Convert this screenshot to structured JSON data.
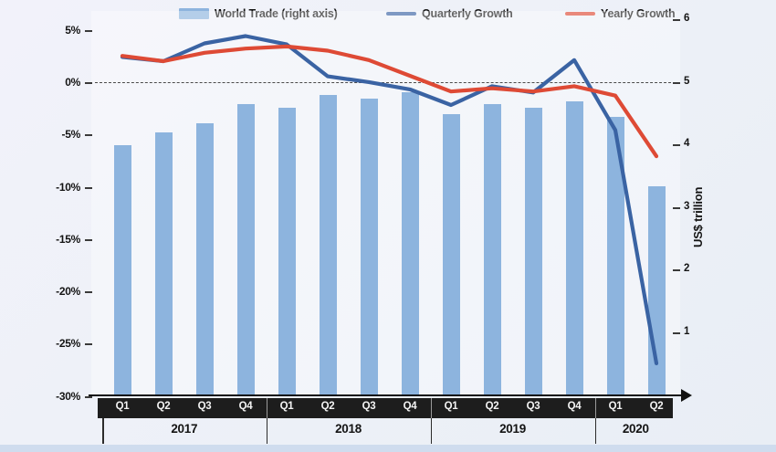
{
  "legend": {
    "items": [
      {
        "label": "World Trade (right axis)",
        "swatch": "bar",
        "color": "#8db4de"
      },
      {
        "label": "Quarterly Growth",
        "swatch": "line",
        "color": "#3a63a3"
      },
      {
        "label": "Yearly Growth",
        "swatch": "line",
        "color": "#de4a35"
      }
    ]
  },
  "chart_data": {
    "type": "bar+line",
    "title": "",
    "categories": [
      "Q1",
      "Q2",
      "Q3",
      "Q4",
      "Q1",
      "Q2",
      "Q3",
      "Q4",
      "Q1",
      "Q2",
      "Q3",
      "Q4",
      "Q1",
      "Q2"
    ],
    "year_groups": [
      {
        "label": "2017",
        "span": 4
      },
      {
        "label": "2018",
        "span": 4
      },
      {
        "label": "2019",
        "span": 4
      },
      {
        "label": "2020",
        "span": 2
      }
    ],
    "series": [
      {
        "name": "World Trade (right axis)",
        "type": "bar",
        "axis": "right",
        "color": "#8db4de",
        "unit": "US$ trillion",
        "values": [
          4.0,
          4.2,
          4.35,
          4.65,
          4.6,
          4.8,
          4.75,
          4.85,
          4.5,
          4.65,
          4.6,
          4.7,
          4.45,
          3.35
        ]
      },
      {
        "name": "Quarterly Growth",
        "type": "line",
        "axis": "left",
        "color": "#3a63a3",
        "unit": "%",
        "values": [
          2.5,
          2.1,
          3.8,
          4.5,
          3.7,
          0.65,
          0.1,
          -0.6,
          -2.1,
          -0.3,
          -0.9,
          2.2,
          -4.5,
          -26.8
        ]
      },
      {
        "name": "Yearly Growth",
        "type": "line",
        "axis": "left",
        "color": "#de4a35",
        "unit": "%",
        "values": [
          2.6,
          2.1,
          2.9,
          3.3,
          3.5,
          3.1,
          2.2,
          0.7,
          -0.8,
          -0.5,
          -0.8,
          -0.3,
          -1.2,
          -7.0
        ]
      }
    ],
    "left_axis": {
      "ticks": [
        "5%",
        "0%",
        "-5%",
        "-10%",
        "-15%",
        "-20%",
        "-25%",
        "-30%"
      ],
      "tick_values": [
        5,
        0,
        -5,
        -10,
        -15,
        -20,
        -25,
        -30
      ],
      "range": [
        -30,
        6
      ],
      "zero_line": "dashed",
      "grid": false
    },
    "right_axis": {
      "label": "US$ trillion",
      "ticks": [
        "6",
        "5",
        "4",
        "3",
        "2",
        "1"
      ],
      "tick_values": [
        6,
        5,
        4,
        3,
        2,
        1
      ],
      "range": [
        0,
        6.1
      ]
    }
  }
}
